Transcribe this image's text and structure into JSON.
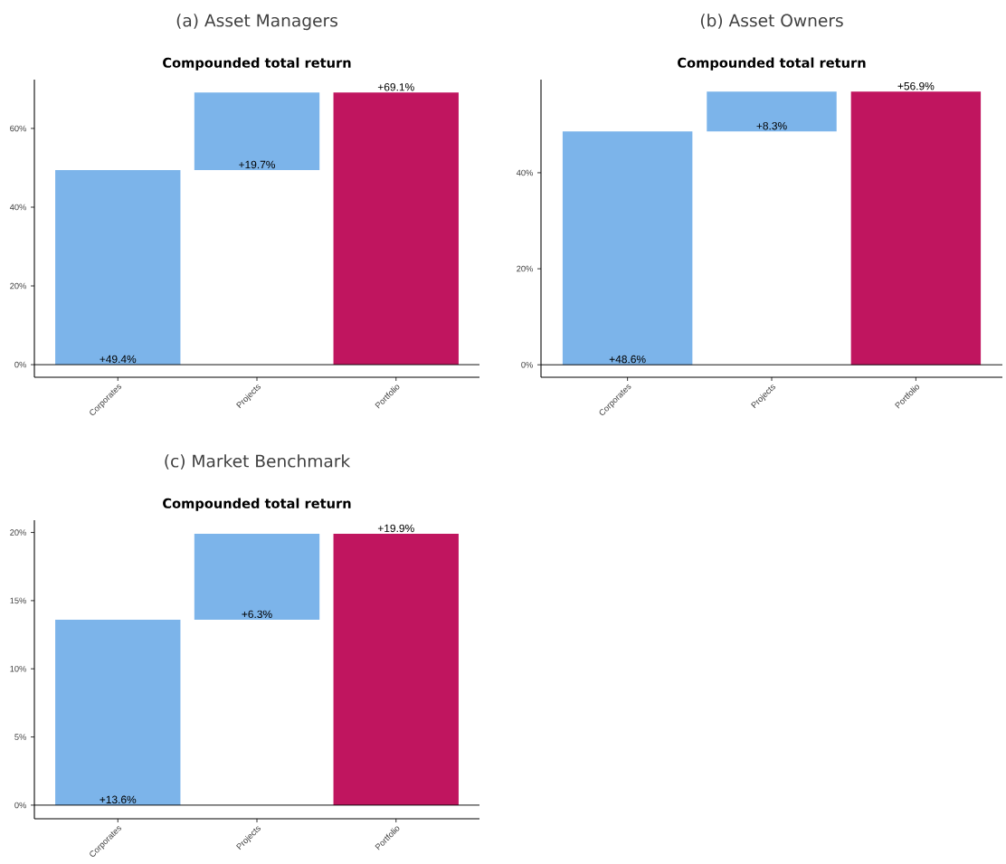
{
  "chart_data": [
    {
      "type": "bar",
      "title": "(a) Asset Managers",
      "subtitle": "Compounded total return",
      "categories": [
        "Corporates",
        "Projects",
        "Portfolio"
      ],
      "values": [
        49.4,
        19.7,
        69.1
      ],
      "base": [
        0,
        49.4,
        0
      ],
      "colors": [
        "#7cb4ea",
        "#7cb4ea",
        "#c0155f"
      ],
      "value_labels": [
        "+49.4%",
        "+19.7%",
        "+69.1%"
      ],
      "ylim": [
        -3.2,
        72.4
      ],
      "yticks": [
        {
          "value": 0,
          "label": "0%"
        },
        {
          "value": 20,
          "label": "20%"
        },
        {
          "value": 40,
          "label": "40%"
        },
        {
          "value": 60,
          "label": "60%"
        }
      ],
      "ref_lines": [
        {
          "axis": "y",
          "value": 0
        }
      ]
    },
    {
      "type": "bar",
      "title": "(b) Asset Owners",
      "subtitle": "Compounded total return",
      "categories": [
        "Corporates",
        "Projects",
        "Portfolio"
      ],
      "values": [
        48.6,
        8.3,
        56.9
      ],
      "base": [
        0,
        48.6,
        0
      ],
      "colors": [
        "#7cb4ea",
        "#7cb4ea",
        "#c0155f"
      ],
      "value_labels": [
        "+48.6%",
        "+8.3%",
        "+56.9%"
      ],
      "ylim": [
        -2.6,
        59.4
      ],
      "yticks": [
        {
          "value": 0,
          "label": "0%"
        },
        {
          "value": 20,
          "label": "20%"
        },
        {
          "value": 40,
          "label": "40%"
        }
      ],
      "ref_lines": [
        {
          "axis": "y",
          "value": 0
        }
      ]
    },
    {
      "type": "bar",
      "title": "(c) Market Benchmark",
      "subtitle": "Compounded total return",
      "categories": [
        "Corporates",
        "Projects",
        "Portfolio"
      ],
      "values": [
        13.6,
        6.3,
        19.9
      ],
      "base": [
        0,
        13.6,
        0
      ],
      "colors": [
        "#7cb4ea",
        "#7cb4ea",
        "#c0155f"
      ],
      "value_labels": [
        "+13.6%",
        "+6.3%",
        "+19.9%"
      ],
      "ylim": [
        -1.0,
        20.9
      ],
      "yticks": [
        {
          "value": 0,
          "label": "0%"
        },
        {
          "value": 5,
          "label": "5%"
        },
        {
          "value": 10,
          "label": "10%"
        },
        {
          "value": 15,
          "label": "15%"
        },
        {
          "value": 20,
          "label": "20%"
        }
      ],
      "ref_lines": [
        {
          "axis": "y",
          "value": 0
        }
      ]
    }
  ]
}
